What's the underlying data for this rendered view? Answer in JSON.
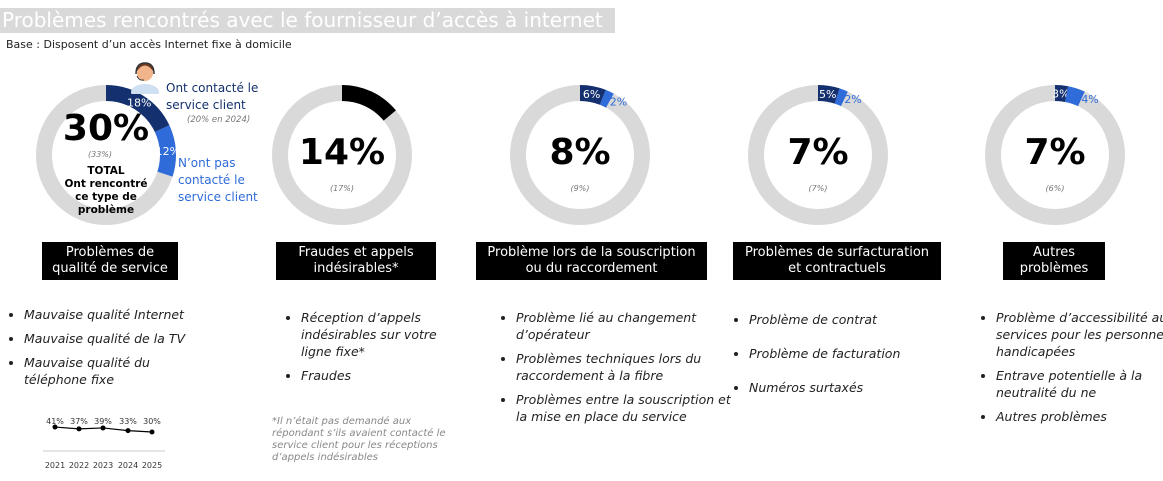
{
  "title": "Problèmes rencontrés avec le fournisseur d’accès à internet",
  "subtitle": "Base : Disposent d’un accès Internet fixe à domicile",
  "colors": {
    "dark": "#14306e",
    "light": "#2f6bd9",
    "grey": "#d9d9d9",
    "black": "#000000"
  },
  "chart_data": [
    {
      "type": "pie",
      "title": "Problèmes de qualité de service",
      "total": "30%",
      "previous": "(33%)",
      "total_label": [
        "TOTAL",
        "Ont rencontré",
        "ce type de",
        "problème"
      ],
      "series": [
        {
          "name": "Ont contacté le service client",
          "value": 18,
          "label": "18%",
          "note": "(20% en 2024)"
        },
        {
          "name": "N’ont pas contacté le service client",
          "value": 12,
          "label": "12%"
        }
      ],
      "items": [
        "Mauvaise qualité Internet",
        "Mauvaise qualité de la TV",
        "Mauvaise qualité du téléphone fixe"
      ],
      "trend": {
        "type": "line",
        "categories": [
          "2021",
          "2022",
          "2023",
          "2024",
          "2025"
        ],
        "values": [
          41,
          37,
          39,
          33,
          30
        ],
        "labels": [
          "41%",
          "37%",
          "39%",
          "33%",
          "30%"
        ]
      }
    },
    {
      "type": "pie",
      "title": "Fraudes et appels indésirables*",
      "total": "14%",
      "previous": "(17%)",
      "series": [
        {
          "value": 14,
          "label": ""
        }
      ],
      "items": [
        "Réception d’appels indésirables sur votre ligne fixe*",
        "Fraudes"
      ],
      "note": "*Il n’était pas demandé aux répondant s’ils avaient contacté le service client pour les réceptions d’appels indésirables"
    },
    {
      "type": "pie",
      "title": "Problème lors de la souscription ou du raccordement",
      "total": "8%",
      "previous": "(9%)",
      "series": [
        {
          "value": 6,
          "label": "6%"
        },
        {
          "value": 2,
          "label": "2%"
        }
      ],
      "items": [
        "Problème lié au changement d’opérateur",
        "Problèmes techniques lors du raccordement à la fibre",
        "Problèmes entre la souscription et la mise en place du service"
      ]
    },
    {
      "type": "pie",
      "title": "Problèmes de surfacturation et contractuels",
      "total": "7%",
      "previous": "(7%)",
      "series": [
        {
          "value": 5,
          "label": "5%"
        },
        {
          "value": 2,
          "label": "2%"
        }
      ],
      "items": [
        "Problème de contrat",
        "Problème de facturation",
        "Numéros surtaxés"
      ]
    },
    {
      "type": "pie",
      "title": "Autres problèmes",
      "total": "7%",
      "previous": "(6%)",
      "series": [
        {
          "value": 3,
          "label": "3%"
        },
        {
          "value": 4,
          "label": "4%"
        }
      ],
      "items": [
        "Problème d’accessibilité aux services pour les personnes handicapées",
        "Entrave potentielle à la neutralité du ne",
        "Autres problèmes"
      ]
    }
  ]
}
